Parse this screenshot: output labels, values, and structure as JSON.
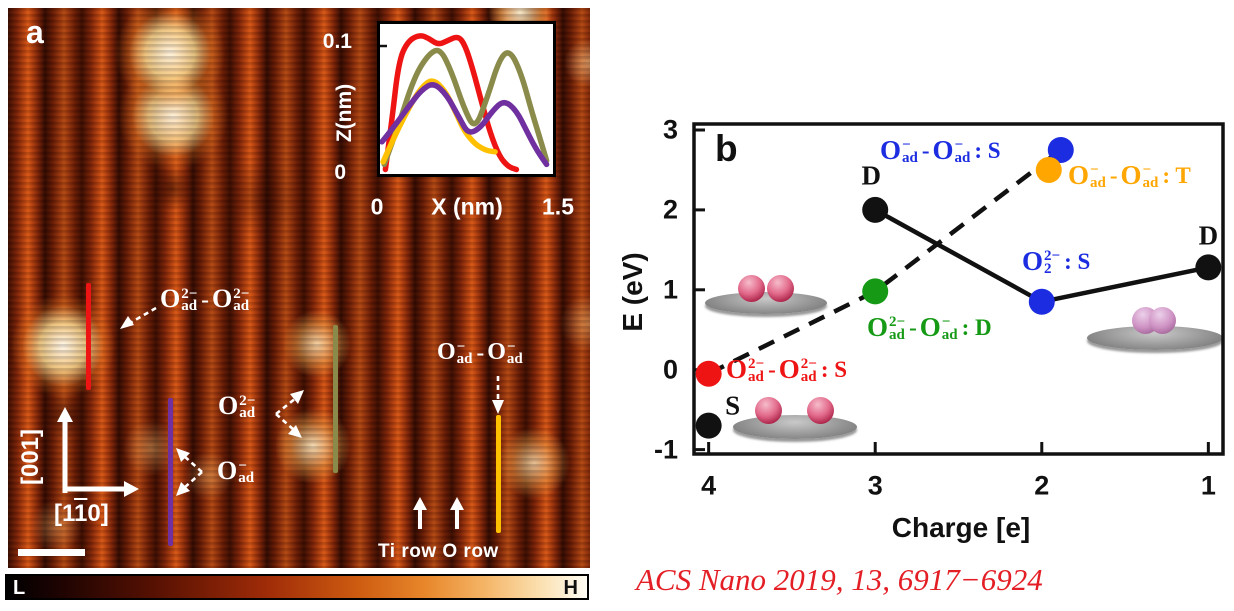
{
  "figure": {
    "panel_a_label": "a",
    "panel_b_label": "b",
    "citation": "ACS Nano 2019, 13, 6917−6924"
  },
  "colors": {
    "blue": "#1c2ce0",
    "orange": "#ffa600",
    "green": "#169a16",
    "red": "#ee1414",
    "black": "#111111",
    "citation_red": "#e41e25",
    "line_red": "#ee1414",
    "line_olive": "#8a8b4a",
    "line_purple": "#7030a0",
    "line_yellow": "#ffc000"
  },
  "panel_a": {
    "label": "a",
    "direction_vertical": "[001]",
    "direction_horizontal": {
      "pre": "[1",
      "bar": "1",
      "post": "0]"
    },
    "row_annotation": "Ti row O row",
    "colorbar": {
      "low": "L",
      "high": "H"
    },
    "formulas": {
      "pair_2minus": [
        {
          "t": "O",
          "sup": "2−",
          "sub": "ad"
        },
        {
          "t": "-"
        },
        {
          "t": "O",
          "sup": "2−",
          "sub": "ad"
        }
      ],
      "single_2minus": [
        {
          "t": "O",
          "sup": "2−",
          "sub": "ad"
        }
      ],
      "single_1minus": [
        {
          "t": "O",
          "sup": "−",
          "sub": "ad"
        }
      ],
      "pair_1minus": [
        {
          "t": "O",
          "sup": "−",
          "sub": "ad"
        },
        {
          "t": "-"
        },
        {
          "t": "O",
          "sup": "−",
          "sub": "ad"
        }
      ]
    }
  },
  "inset": {
    "ylabel": "Z(nm)",
    "ytick_top": "0.1",
    "ytick_bottom": "0",
    "xtick_left": "0",
    "xlabel": "X (nm)",
    "xtick_right": "1.5"
  },
  "panel_b": {
    "label": "b",
    "xlabel": "Charge [e]",
    "ylabel": "E (eV)",
    "formulas": {
      "blue_s": [
        {
          "t": "O",
          "sup": "−",
          "sub": "ad"
        },
        {
          "t": "-"
        },
        {
          "t": "O",
          "sup": "−",
          "sub": "ad"
        },
        {
          "t": ": S"
        }
      ],
      "orange_t": [
        {
          "t": "O",
          "sup": "−",
          "sub": "ad"
        },
        {
          "t": "-"
        },
        {
          "t": "O",
          "sup": "−",
          "sub": "ad"
        },
        {
          "t": ": T"
        }
      ],
      "o2_s": [
        {
          "t": "O",
          "sup": "2−",
          "sub": "2"
        },
        {
          "t": ": S"
        }
      ],
      "green_d": [
        {
          "t": "O",
          "sup": "2−",
          "sub": "ad"
        },
        {
          "t": "-"
        },
        {
          "t": "O",
          "sup": "−",
          "sub": "ad"
        },
        {
          "t": ": D"
        }
      ],
      "red_s": [
        {
          "t": "O",
          "sup": "2−",
          "sub": "ad"
        },
        {
          "t": "-"
        },
        {
          "t": "O",
          "sup": "2−",
          "sub": "ad"
        },
        {
          "t": ": S"
        }
      ]
    }
  },
  "chart_data": [
    {
      "id": "b_energy_vs_charge",
      "type": "scatter",
      "xlabel": "Charge [e]",
      "ylabel": "E (eV)",
      "x_reversed": true,
      "x_left": 4.1,
      "x_right": 0.9,
      "y_top": 3.1,
      "y_bottom": -1.08,
      "xticks": [
        4,
        3,
        2,
        1
      ],
      "yticks": [
        3,
        2,
        1,
        0,
        -1
      ],
      "points": [
        {
          "x": 4,
          "y": -0.7,
          "color": "#111111",
          "letter": "S",
          "letter_dx": 24,
          "letter_dy": -20
        },
        {
          "x": 4,
          "y": -0.05,
          "color": "#ee1414",
          "species": "Oad2- - Oad2- : S"
        },
        {
          "x": 3,
          "y": 2.0,
          "color": "#111111",
          "letter": "D",
          "letter_dx": -4,
          "letter_dy": -34
        },
        {
          "x": 3,
          "y": 0.98,
          "color": "#169a16",
          "species": "Oad2- - Oad- : D"
        },
        {
          "x": 2,
          "y": 2.75,
          "color": "#1c2ce0",
          "dx": 19,
          "species": "Oad- - Oad- : S"
        },
        {
          "x": 2,
          "y": 2.5,
          "color": "#ffa600",
          "dx": 7,
          "species": "Oad- - Oad- : T"
        },
        {
          "x": 2,
          "y": 0.85,
          "color": "#1c2ce0",
          "species": "O2 2- : S"
        },
        {
          "x": 1,
          "y": 1.28,
          "color": "#111111",
          "letter": "D",
          "letter_dx": 0,
          "letter_dy": -31
        }
      ],
      "lines": [
        {
          "style": "solid",
          "point_idx": [
            2,
            6,
            7
          ]
        },
        {
          "style": "dashed",
          "point_idx": [
            1,
            3,
            4
          ]
        }
      ]
    },
    {
      "id": "a_line_profiles",
      "type": "line",
      "xlabel": "X (nm)",
      "ylabel": "Z(nm)",
      "xlim": [
        0,
        1.5
      ],
      "ylim": [
        0,
        0.119
      ],
      "xtick_labels": [
        "0",
        "1.5"
      ],
      "ytick_labels": [
        "0",
        "0.1"
      ],
      "series": [
        {
          "name": "red profile",
          "color": "#ee1414",
          "points": [
            [
              0.03,
              0.002
            ],
            [
              0.09,
              0.042
            ],
            [
              0.15,
              0.088
            ],
            [
              0.23,
              0.104
            ],
            [
              0.34,
              0.109
            ],
            [
              0.42,
              0.106
            ],
            [
              0.5,
              0.101
            ],
            [
              0.58,
              0.104
            ],
            [
              0.68,
              0.108
            ],
            [
              0.74,
              0.101
            ],
            [
              0.81,
              0.082
            ],
            [
              0.89,
              0.055
            ],
            [
              0.97,
              0.03
            ],
            [
              1.05,
              0.012
            ],
            [
              1.13,
              0.004
            ],
            [
              1.2,
              0.002
            ]
          ]
        },
        {
          "name": "olive profile",
          "color": "#8a8b4a",
          "points": [
            [
              0.02,
              0.006
            ],
            [
              0.14,
              0.035
            ],
            [
              0.29,
              0.076
            ],
            [
              0.42,
              0.094
            ],
            [
              0.52,
              0.098
            ],
            [
              0.62,
              0.08
            ],
            [
              0.73,
              0.051
            ],
            [
              0.83,
              0.033
            ],
            [
              0.94,
              0.059
            ],
            [
              1.05,
              0.09
            ],
            [
              1.14,
              0.097
            ],
            [
              1.24,
              0.079
            ],
            [
              1.34,
              0.047
            ],
            [
              1.42,
              0.024
            ],
            [
              1.47,
              0.009
            ]
          ]
        },
        {
          "name": "purple profile",
          "color": "#7030a0",
          "points": [
            [
              0,
              0.024
            ],
            [
              0.1,
              0.035
            ],
            [
              0.23,
              0.051
            ],
            [
              0.35,
              0.065
            ],
            [
              0.46,
              0.071
            ],
            [
              0.58,
              0.061
            ],
            [
              0.69,
              0.043
            ],
            [
              0.77,
              0.03
            ],
            [
              0.88,
              0.035
            ],
            [
              0.99,
              0.049
            ],
            [
              1.09,
              0.057
            ],
            [
              1.2,
              0.049
            ],
            [
              1.3,
              0.031
            ],
            [
              1.39,
              0.016
            ],
            [
              1.47,
              0.006
            ]
          ]
        },
        {
          "name": "yellow profile",
          "color": "#ffc000",
          "points": [
            [
              0.01,
              0.008
            ],
            [
              0.12,
              0.03
            ],
            [
              0.24,
              0.051
            ],
            [
              0.35,
              0.067
            ],
            [
              0.45,
              0.074
            ],
            [
              0.56,
              0.065
            ],
            [
              0.65,
              0.049
            ],
            [
              0.73,
              0.033
            ],
            [
              0.83,
              0.022
            ],
            [
              0.93,
              0.017
            ],
            [
              1.01,
              0.016
            ]
          ]
        }
      ]
    }
  ]
}
